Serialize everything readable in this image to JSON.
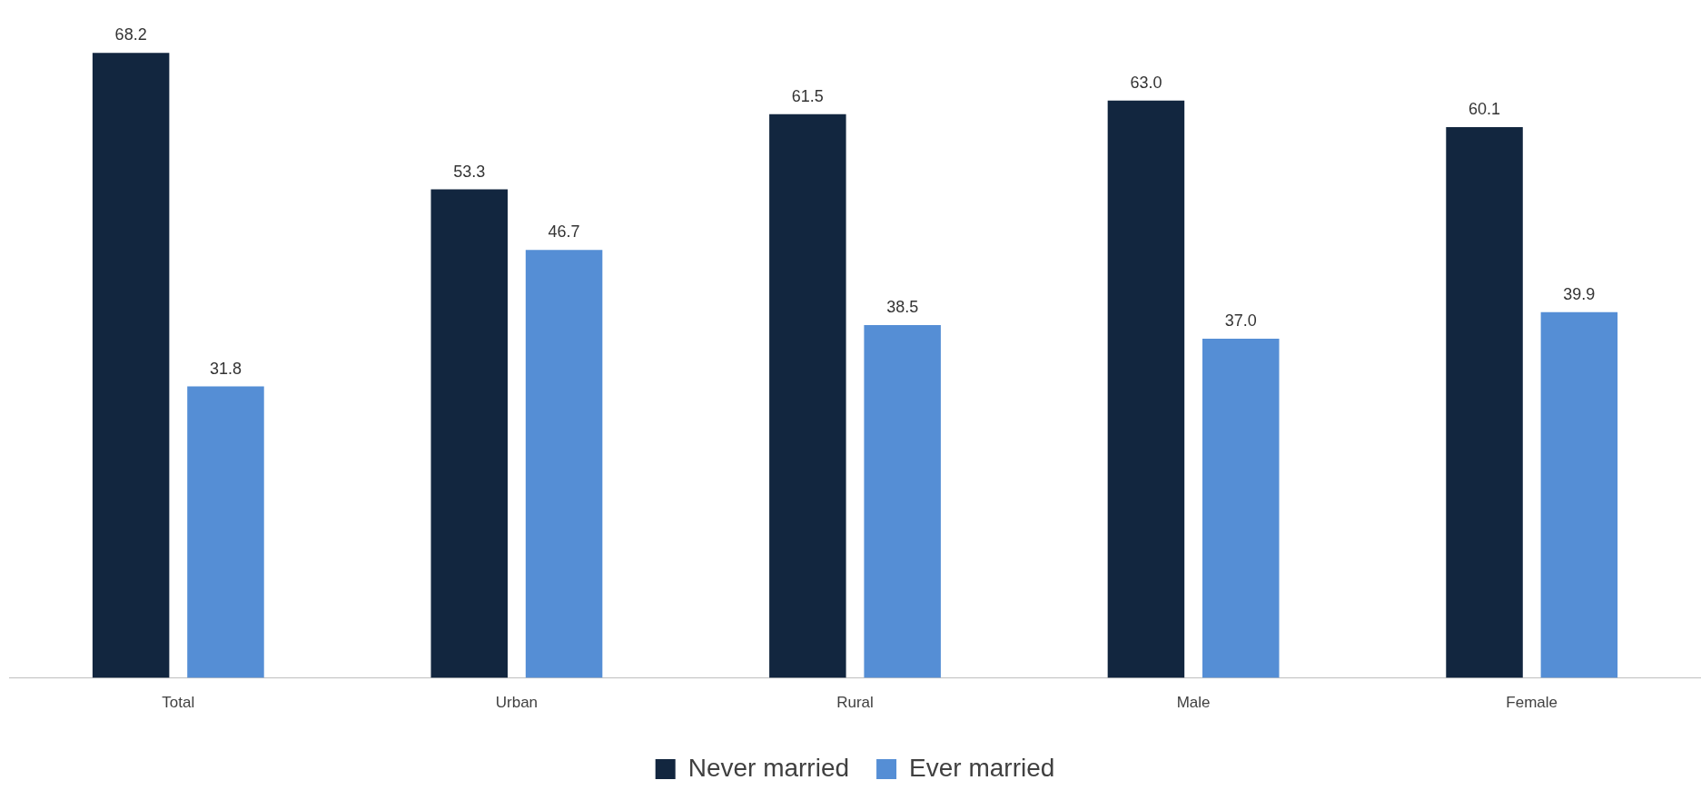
{
  "chart_data": {
    "type": "bar",
    "categories": [
      "Total",
      "Urban",
      "Rural",
      "Male",
      "Female"
    ],
    "series": [
      {
        "name": "Never married",
        "color": "#12263f",
        "values": [
          68.2,
          53.3,
          61.5,
          63.0,
          60.1
        ],
        "value_labels": [
          "68.2",
          "53.3",
          "61.5",
          "63.0",
          "60.1"
        ]
      },
      {
        "name": "Ever married",
        "color": "#558ed5",
        "values": [
          31.8,
          46.7,
          38.5,
          37.0,
          39.9
        ],
        "value_labels": [
          "31.8",
          "46.7",
          "38.5",
          "37.0",
          "39.9"
        ]
      }
    ],
    "grid": false,
    "legend": "bottom",
    "tick_labels": "x"
  }
}
